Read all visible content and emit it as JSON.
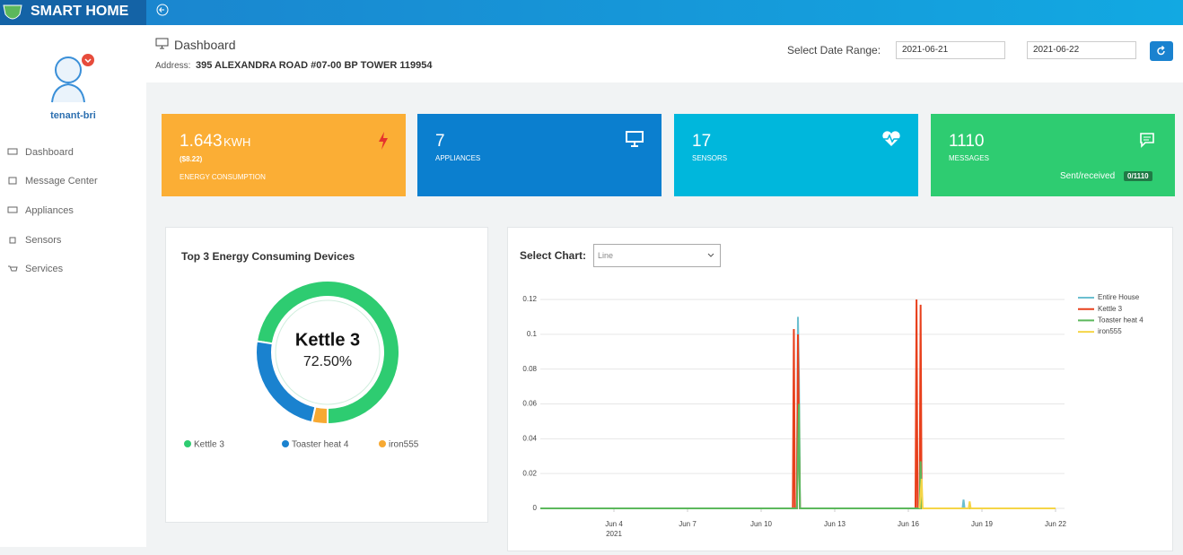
{
  "header": {
    "brand": "SMART HOME"
  },
  "sidebar": {
    "user": "tenant-bri",
    "menu": [
      "Dashboard",
      "Message Center",
      "Appliances",
      "Sensors",
      "Services"
    ]
  },
  "page": {
    "title": "Dashboard",
    "address_label": "Address:",
    "address": "395 ALEXANDRA ROAD #07-00 BP TOWER 119954",
    "date_range_label": "Select Date Range:",
    "date_from": "2021-06-21",
    "date_to": "2021-06-22"
  },
  "cards": [
    {
      "value": 1.643,
      "unit": "KWH",
      "sub": "($8.22)",
      "label": "ENERGY CONSUMPTION"
    },
    {
      "value": 7,
      "label": "APPLIANCES"
    },
    {
      "value": 17,
      "label": "SENSORS"
    },
    {
      "value": 1110,
      "label": "MESSAGES",
      "note": "Sent/received",
      "badge": "0/1110"
    }
  ],
  "chart_data": [
    {
      "type": "pie",
      "title": "Top 3 Energy Consuming Devices",
      "categories": [
        "Kettle 3",
        "Toaster heat 4",
        "iron555"
      ],
      "values": [
        72.5,
        24,
        3.5
      ],
      "value_labels": [
        "72.50%",
        null,
        null
      ],
      "colors": [
        "#2ecc71",
        "#1a82cf",
        "#f7a932"
      ]
    },
    {
      "type": "line",
      "select_label": "Select Chart:",
      "select_value": "Line",
      "xlim": [
        "2021-06-01",
        "2021-06-22"
      ],
      "xticks": [
        {
          "value": "2021-06-04",
          "label": "Jun 4"
        },
        {
          "value": "2021-06-07",
          "label": "Jun 7"
        },
        {
          "value": "2021-06-10",
          "label": "Jun 10"
        },
        {
          "value": "2021-06-13",
          "label": "Jun 13"
        },
        {
          "value": "2021-06-16",
          "label": "Jun 16"
        },
        {
          "value": "2021-06-19",
          "label": "Jun 19"
        },
        {
          "value": "2021-06-22",
          "label": "Jun 22"
        }
      ],
      "xtick_year": "2021",
      "ylim": [
        0,
        0.12
      ],
      "yticks": [
        0,
        0.02,
        0.04,
        0.06,
        0.08,
        0.1,
        0.12
      ],
      "grid": true,
      "series": [
        {
          "name": "Entire House",
          "color": "#6cbfd0",
          "x": [
            "2021-06-01",
            "2021-06-11 11:00",
            "2021-06-11 12:00",
            "2021-06-11 13:00",
            "2021-06-11 14:00",
            "2021-06-16 11:00",
            "2021-06-16 12:00",
            "2021-06-16 13:00",
            "2021-06-18 05:00",
            "2021-06-18 06:00",
            "2021-06-18 07:00",
            "2021-06-22"
          ],
          "values": [
            0,
            0,
            0.11,
            0.074,
            0,
            0,
            0.005,
            0,
            0,
            0.005,
            0,
            0
          ]
        },
        {
          "name": "Kettle 3",
          "color": "#e8401c",
          "x": [
            "2021-06-01",
            "2021-06-11 07:00",
            "2021-06-11 08:00",
            "2021-06-11 09:00",
            "2021-06-11 11:00",
            "2021-06-11 12:00",
            "2021-06-11 13:00",
            "2021-06-11 14:00",
            "2021-06-16 07:00",
            "2021-06-16 08:00",
            "2021-06-16 09:00",
            "2021-06-16 11:00",
            "2021-06-16 12:00",
            "2021-06-16 13:00",
            "2021-06-22"
          ],
          "values": [
            0,
            0,
            0.103,
            0,
            0,
            0.1,
            0.045,
            0,
            0,
            0.12,
            0,
            0,
            0.117,
            0,
            0
          ]
        },
        {
          "name": "Toaster heat 4",
          "color": "#5cb85c",
          "x": [
            "2021-06-01",
            "2021-06-11 11:00",
            "2021-06-11 12:00",
            "2021-06-11 13:00",
            "2021-06-11 14:00",
            "2021-06-16 11:00",
            "2021-06-16 12:00",
            "2021-06-16 13:00",
            "2021-06-22"
          ],
          "values": [
            0,
            0,
            0.028,
            0.06,
            0,
            0,
            0.027,
            0,
            0
          ]
        },
        {
          "name": "iron555",
          "color": "#f5d547",
          "x": [
            "2021-06-16 11:00",
            "2021-06-16 13:00",
            "2021-06-16 14:00",
            "2021-06-18 11:00",
            "2021-06-18 12:00",
            "2021-06-18 13:00",
            "2021-06-22"
          ],
          "values": [
            0,
            0.017,
            0,
            0,
            0.004,
            0,
            0
          ]
        }
      ]
    }
  ]
}
